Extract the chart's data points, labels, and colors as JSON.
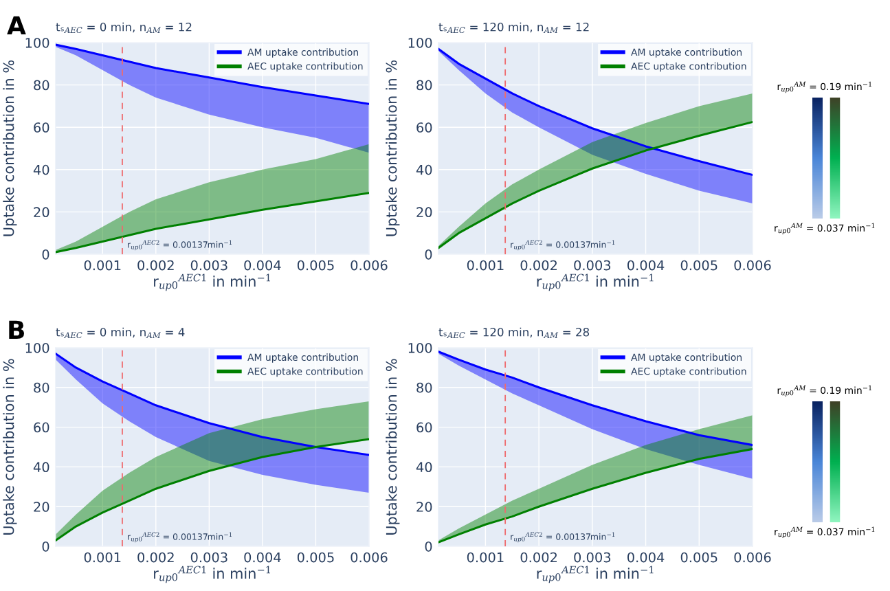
{
  "chart_data": [
    {
      "type": "line",
      "title": "tₛ$_{AEC}$ = 0 min, n$_{AM}$ = 12",
      "xlabel": "r$_{up0}$$^{AEC1}$ in min$^{−1}$",
      "ylabel": "Uptake contribution in %",
      "annotations": [
        "A"
      ],
      "x": [
        0.00012,
        0.0005,
        0.001,
        0.0015,
        0.002,
        0.003,
        0.004,
        0.005,
        0.006
      ],
      "xlim": [
        0.00012,
        0.006
      ],
      "xticks": [
        0.001,
        0.002,
        0.003,
        0.004,
        0.005,
        0.006
      ],
      "ylim": [
        0,
        100
      ],
      "yticks": [
        0,
        20,
        40,
        60,
        80,
        100
      ],
      "grid": true,
      "legend": "top right",
      "ref_lines": [
        {
          "axis": "x",
          "value": 0.00137,
          "label": "r$_{up0}$$^{AEC2}$ = 0.00137min$^{−1}$",
          "color": "#ee6b6e",
          "line_style": "dashed"
        }
      ],
      "series": [
        {
          "name": "AM uptake contribution",
          "color": "#0000ff",
          "values": [
            99,
            97,
            94,
            91,
            88,
            83.5,
            79,
            75,
            71
          ],
          "lower": [
            98,
            94,
            87,
            80,
            74,
            66,
            60,
            55,
            48
          ],
          "upper": [
            99,
            97,
            94,
            91,
            88,
            83.5,
            79,
            75,
            71
          ]
        },
        {
          "name": "AEC uptake contribution",
          "color": "#008000",
          "values": [
            1,
            3,
            6,
            9,
            12,
            16.5,
            21,
            25,
            29
          ],
          "lower": [
            1,
            3,
            6,
            9,
            12,
            16.5,
            21,
            25,
            29
          ],
          "upper": [
            2,
            6,
            13,
            20,
            26,
            34,
            40,
            45,
            52
          ]
        }
      ]
    },
    {
      "type": "line",
      "title": "tₛ$_{AEC}$ = 120 min, n$_{AM}$ = 12",
      "xlabel": "r$_{up0}$$^{AEC1}$ in min$^{−1}$",
      "ylabel": "Uptake contribution in %",
      "x": [
        0.00012,
        0.0005,
        0.001,
        0.0015,
        0.002,
        0.003,
        0.004,
        0.005,
        0.006
      ],
      "xlim": [
        0.00012,
        0.006
      ],
      "xticks": [
        0.001,
        0.002,
        0.003,
        0.004,
        0.005,
        0.006
      ],
      "ylim": [
        0,
        100
      ],
      "yticks": [
        0,
        20,
        40,
        60,
        80,
        100
      ],
      "grid": true,
      "legend": "top right",
      "ref_lines": [
        {
          "axis": "x",
          "value": 0.00137,
          "label": "r$_{up0}$$^{AEC2}$ = 0.00137min$^{−1}$",
          "color": "#ee6b6e",
          "line_style": "dashed"
        }
      ],
      "series": [
        {
          "name": "AM uptake contribution",
          "color": "#0000ff",
          "values": [
            97,
            90,
            83,
            76,
            70,
            59.5,
            51,
            44,
            37.5
          ],
          "lower": [
            96,
            87,
            76,
            67,
            60,
            47,
            38,
            30,
            24
          ],
          "upper": [
            97,
            90,
            83,
            76,
            70,
            59.5,
            51,
            44,
            37.5
          ]
        },
        {
          "name": "AEC uptake contribution",
          "color": "#008000",
          "values": [
            3,
            10,
            17,
            24,
            30,
            40.5,
            49,
            56,
            62.5
          ],
          "lower": [
            3,
            10,
            17,
            24,
            30,
            40.5,
            49,
            56,
            62.5
          ],
          "upper": [
            4,
            13,
            24,
            33,
            40,
            53,
            62,
            70,
            76
          ]
        }
      ]
    },
    {
      "type": "other",
      "annotations": [
        "r$_{up0}$$^{AM}$ = 0.19 min$^{−1}$",
        "r$_{up0}$$^{AM}$ = 0.037 min$^{−1}$"
      ],
      "colors": [
        "#0a2361",
        "#4a86d8",
        "#b9cbe8",
        "#3f4227",
        "#00b050",
        "#8ff5bf"
      ]
    },
    {
      "type": "line",
      "title": "tₛ$_{AEC}$ = 0 min, n$_{AM}$ = 4",
      "xlabel": "r$_{up0}$$^{AEC1}$ in min$^{−1}$",
      "ylabel": "Uptake contribution in %",
      "annotations": [
        "B"
      ],
      "x": [
        0.00012,
        0.0005,
        0.001,
        0.0015,
        0.002,
        0.003,
        0.004,
        0.005,
        0.006
      ],
      "xlim": [
        0.00012,
        0.006
      ],
      "xticks": [
        0.001,
        0.002,
        0.003,
        0.004,
        0.005,
        0.006
      ],
      "ylim": [
        0,
        100
      ],
      "yticks": [
        0,
        20,
        40,
        60,
        80,
        100
      ],
      "grid": true,
      "legend": "top right",
      "ref_lines": [
        {
          "axis": "x",
          "value": 0.00137,
          "label": "r$_{up0}$$^{AEC2}$ = 0.00137min$^{−1}$",
          "color": "#ee6b6e",
          "line_style": "dashed"
        }
      ],
      "series": [
        {
          "name": "AM uptake contribution",
          "color": "#0000ff",
          "values": [
            97,
            90,
            83,
            77,
            71,
            62,
            55,
            50,
            46
          ],
          "lower": [
            94,
            84,
            72,
            63,
            55,
            43,
            36,
            31,
            27
          ],
          "upper": [
            97,
            90,
            83,
            77,
            71,
            62,
            55,
            50,
            46
          ]
        },
        {
          "name": "AEC uptake contribution",
          "color": "#008000",
          "values": [
            3,
            10,
            17,
            23,
            29,
            38,
            45,
            50,
            54
          ],
          "lower": [
            3,
            10,
            17,
            23,
            29,
            38,
            45,
            50,
            54
          ],
          "upper": [
            6,
            16,
            28,
            37,
            45,
            57,
            64,
            69,
            73
          ]
        }
      ]
    },
    {
      "type": "line",
      "title": "tₛ$_{AEC}$ = 120 min, n$_{AM}$ = 28",
      "xlabel": "r$_{up0}$$^{AEC1}$ in min$^{−1}$",
      "ylabel": "Uptake contribution in %",
      "x": [
        0.00012,
        0.0005,
        0.001,
        0.0015,
        0.002,
        0.003,
        0.004,
        0.005,
        0.006
      ],
      "xlim": [
        0.00012,
        0.006
      ],
      "xticks": [
        0.001,
        0.002,
        0.003,
        0.004,
        0.005,
        0.006
      ],
      "ylim": [
        0,
        100
      ],
      "yticks": [
        0,
        20,
        40,
        60,
        80,
        100
      ],
      "grid": true,
      "legend": "top right",
      "ref_lines": [
        {
          "axis": "x",
          "value": 0.00137,
          "label": "r$_{up0}$$^{AEC2}$ = 0.00137min$^{−1}$",
          "color": "#ee6b6e",
          "line_style": "dashed"
        }
      ],
      "series": [
        {
          "name": "AM uptake contribution",
          "color": "#0000ff",
          "values": [
            98,
            94,
            89,
            85,
            80,
            71,
            63,
            56,
            51
          ],
          "lower": [
            97,
            91,
            84,
            77,
            71,
            59,
            49,
            41,
            34
          ],
          "upper": [
            98,
            94,
            89,
            85,
            80,
            71,
            63,
            56,
            51
          ]
        },
        {
          "name": "AEC uptake contribution",
          "color": "#008000",
          "values": [
            2,
            6,
            11,
            15,
            20,
            29,
            37,
            44,
            49
          ],
          "lower": [
            2,
            6,
            11,
            15,
            20,
            29,
            37,
            44,
            49
          ],
          "upper": [
            3,
            9,
            16,
            23,
            29,
            41,
            51,
            59,
            66
          ]
        }
      ]
    },
    {
      "type": "other",
      "annotations": [
        "r$_{up0}$$^{AM}$ = 0.19 min$^{−1}$",
        "r$_{up0}$$^{AM}$ = 0.037 min$^{−1}$"
      ],
      "colors": [
        "#0a2361",
        "#4a86d8",
        "#b9cbe8",
        "#3f4227",
        "#00b050",
        "#8ff5bf"
      ]
    }
  ]
}
